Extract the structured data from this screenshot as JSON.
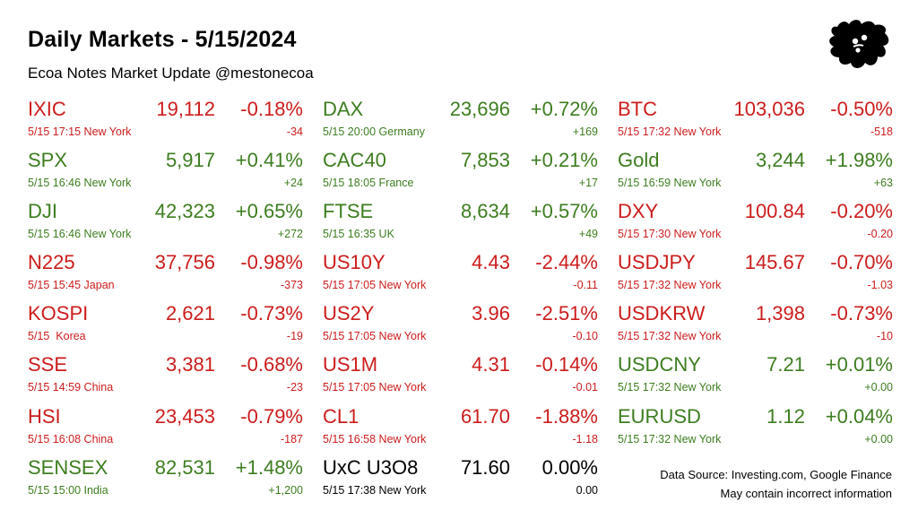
{
  "header": {
    "title": "Daily Markets - 5/15/2024",
    "subtitle": "Ecoa Notes Market Update @mestonecoa"
  },
  "colors": {
    "down": "#cc1c1c",
    "up": "#3d7d1f",
    "flat": "#000000"
  },
  "logo": {
    "icon": "ink-splat-logo"
  },
  "columns": [
    [
      {
        "symbol": "IXIC",
        "price": "19,112",
        "change_pct": "-0.18%",
        "meta": "5/15 17:15 New York",
        "change_abs": "-34",
        "direction": "down"
      },
      {
        "symbol": "SPX",
        "price": "5,917",
        "change_pct": "+0.41%",
        "meta": "5/15 16:46 New York",
        "change_abs": "+24",
        "direction": "up"
      },
      {
        "symbol": "DJI",
        "price": "42,323",
        "change_pct": "+0.65%",
        "meta": "5/15 16:46 New York",
        "change_abs": "+272",
        "direction": "up"
      },
      {
        "symbol": "N225",
        "price": "37,756",
        "change_pct": "-0.98%",
        "meta": "5/15 15:45 Japan",
        "change_abs": "-373",
        "direction": "down"
      },
      {
        "symbol": "KOSPI",
        "price": "2,621",
        "change_pct": "-0.73%",
        "meta": "5/15  Korea",
        "change_abs": "-19",
        "direction": "down"
      },
      {
        "symbol": "SSE",
        "price": "3,381",
        "change_pct": "-0.68%",
        "meta": "5/15 14:59 China",
        "change_abs": "-23",
        "direction": "down"
      },
      {
        "symbol": "HSI",
        "price": "23,453",
        "change_pct": "-0.79%",
        "meta": "5/15 16:08 China",
        "change_abs": "-187",
        "direction": "down"
      },
      {
        "symbol": "SENSEX",
        "price": "82,531",
        "change_pct": "+1.48%",
        "meta": "5/15 15:00 India",
        "change_abs": "+1,200",
        "direction": "up"
      }
    ],
    [
      {
        "symbol": "DAX",
        "price": "23,696",
        "change_pct": "+0.72%",
        "meta": "5/15 20:00 Germany",
        "change_abs": "+169",
        "direction": "up"
      },
      {
        "symbol": "CAC40",
        "price": "7,853",
        "change_pct": "+0.21%",
        "meta": "5/15 18:05 France",
        "change_abs": "+17",
        "direction": "up"
      },
      {
        "symbol": "FTSE",
        "price": "8,634",
        "change_pct": "+0.57%",
        "meta": "5/15 16:35 UK",
        "change_abs": "+49",
        "direction": "up"
      },
      {
        "symbol": "US10Y",
        "price": "4.43",
        "change_pct": "-2.44%",
        "meta": "5/15 17:05 New York",
        "change_abs": "-0.11",
        "direction": "down"
      },
      {
        "symbol": "US2Y",
        "price": "3.96",
        "change_pct": "-2.51%",
        "meta": "5/15 17:05 New York",
        "change_abs": "-0.10",
        "direction": "down"
      },
      {
        "symbol": "US1M",
        "price": "4.31",
        "change_pct": "-0.14%",
        "meta": "5/15 17:05 New York",
        "change_abs": "-0.01",
        "direction": "down"
      },
      {
        "symbol": "CL1",
        "price": "61.70",
        "change_pct": "-1.88%",
        "meta": "5/15 16:58 New York",
        "change_abs": "-1.18",
        "direction": "down"
      },
      {
        "symbol": "UxC U3O8",
        "price": "71.60",
        "change_pct": "0.00%",
        "meta": "5/15 17:38 New York",
        "change_abs": "0.00",
        "direction": "flat"
      }
    ],
    [
      {
        "symbol": "BTC",
        "price": "103,036",
        "change_pct": "-0.50%",
        "meta": "5/15 17:32 New York",
        "change_abs": "-518",
        "direction": "down"
      },
      {
        "symbol": "Gold",
        "price": "3,244",
        "change_pct": "+1.98%",
        "meta": "5/15 16:59 New York",
        "change_abs": "+63",
        "direction": "up"
      },
      {
        "symbol": "DXY",
        "price": "100.84",
        "change_pct": "-0.20%",
        "meta": "5/15 17:30 New York",
        "change_abs": "-0.20",
        "direction": "down"
      },
      {
        "symbol": "USDJPY",
        "price": "145.67",
        "change_pct": "-0.70%",
        "meta": "5/15 17:32 New York",
        "change_abs": "-1.03",
        "direction": "down"
      },
      {
        "symbol": "USDKRW",
        "price": "1,398",
        "change_pct": "-0.73%",
        "meta": "5/15 17:32 New York",
        "change_abs": "-10",
        "direction": "down"
      },
      {
        "symbol": "USDCNY",
        "price": "7.21",
        "change_pct": "+0.01%",
        "meta": "5/15 17:32 New York",
        "change_abs": "+0.00",
        "direction": "up"
      },
      {
        "symbol": "EURUSD",
        "price": "1.12",
        "change_pct": "+0.04%",
        "meta": "5/15 17:32 New York",
        "change_abs": "+0.00",
        "direction": "up"
      }
    ]
  ],
  "footer": {
    "source": "Data Source: Investing.com, Google Finance",
    "disclaimer": "May contain incorrect information"
  }
}
